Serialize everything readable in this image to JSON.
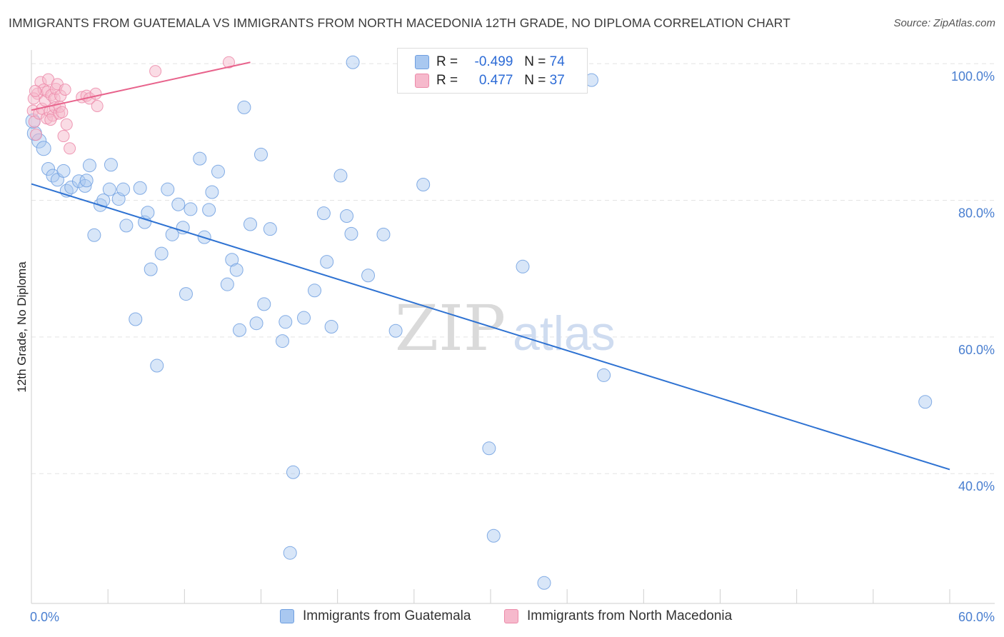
{
  "title": "IMMIGRANTS FROM GUATEMALA VS IMMIGRANTS FROM NORTH MACEDONIA 12TH GRADE, NO DIPLOMA CORRELATION CHART",
  "source": "Source: ZipAtlas.com",
  "watermark": {
    "zip": "ZIP",
    "atlas": "atlas"
  },
  "legend": {
    "rows": [
      {
        "r_label": "R =",
        "r_value": "-0.499",
        "n_label": "N =",
        "n_value": "74"
      },
      {
        "r_label": "R =",
        "r_value": "0.477",
        "n_label": "N =",
        "n_value": "37"
      }
    ]
  },
  "colors": {
    "blue_fill": "#a9c8f0",
    "blue_stroke": "#6f9fe0",
    "blue_line": "#2e72d2",
    "pink_fill": "#f6b9cc",
    "pink_stroke": "#ec8aa9",
    "pink_line": "#e8638c",
    "grid": "#e4e4e4",
    "axis_text": "#4a7fd0"
  },
  "chart_data": {
    "type": "scatter",
    "title": "IMMIGRANTS FROM GUATEMALA VS IMMIGRANTS FROM NORTH MACEDONIA 12TH GRADE, NO DIPLOMA CORRELATION CHART",
    "xlabel": "",
    "ylabel": "12th Grade, No Diploma",
    "xlim": [
      0,
      60
    ],
    "ylim": [
      21,
      102
    ],
    "x_tick_labels": [
      "0.0%",
      "60.0%"
    ],
    "y_ticks": [
      40,
      60,
      80,
      100
    ],
    "y_tick_labels": [
      "40.0%",
      "60.0%",
      "80.0%",
      "100.0%"
    ],
    "legend_position": "top-center",
    "series": [
      {
        "name": "Immigrants from Guatemala",
        "color": "#a9c8f0",
        "trend": {
          "x": [
            0,
            60
          ],
          "y": [
            82.4,
            40.6
          ]
        },
        "points": [
          [
            0.2,
            89.8
          ],
          [
            0.5,
            88.7
          ],
          [
            0.8,
            87.6
          ],
          [
            1.1,
            84.6
          ],
          [
            1.4,
            83.6
          ],
          [
            1.7,
            83.0
          ],
          [
            2.1,
            84.3
          ],
          [
            2.3,
            81.4
          ],
          [
            2.6,
            81.9
          ],
          [
            3.1,
            82.8
          ],
          [
            3.5,
            82.1
          ],
          [
            3.6,
            82.9
          ],
          [
            3.8,
            85.1
          ],
          [
            4.1,
            74.9
          ],
          [
            4.5,
            79.3
          ],
          [
            4.7,
            80.0
          ],
          [
            5.1,
            81.6
          ],
          [
            5.2,
            85.2
          ],
          [
            5.7,
            80.2
          ],
          [
            6.0,
            81.6
          ],
          [
            6.2,
            76.3
          ],
          [
            6.8,
            62.6
          ],
          [
            7.1,
            81.8
          ],
          [
            7.4,
            76.8
          ],
          [
            7.6,
            78.2
          ],
          [
            7.8,
            69.9
          ],
          [
            8.2,
            55.8
          ],
          [
            8.5,
            72.2
          ],
          [
            8.9,
            81.6
          ],
          [
            9.2,
            75.0
          ],
          [
            9.6,
            79.4
          ],
          [
            9.9,
            76.0
          ],
          [
            10.1,
            66.3
          ],
          [
            10.4,
            78.7
          ],
          [
            11.0,
            86.1
          ],
          [
            11.3,
            74.6
          ],
          [
            11.6,
            78.6
          ],
          [
            11.8,
            81.2
          ],
          [
            12.2,
            84.2
          ],
          [
            12.8,
            67.7
          ],
          [
            13.1,
            71.3
          ],
          [
            13.4,
            69.8
          ],
          [
            13.6,
            61.0
          ],
          [
            13.9,
            93.6
          ],
          [
            14.3,
            76.5
          ],
          [
            14.7,
            62.0
          ],
          [
            15.0,
            86.7
          ],
          [
            15.2,
            64.8
          ],
          [
            15.6,
            75.8
          ],
          [
            16.4,
            59.4
          ],
          [
            16.6,
            62.2
          ],
          [
            16.9,
            28.4
          ],
          [
            17.1,
            40.2
          ],
          [
            17.8,
            62.8
          ],
          [
            18.5,
            66.8
          ],
          [
            19.1,
            78.1
          ],
          [
            19.3,
            71.0
          ],
          [
            19.6,
            61.5
          ],
          [
            20.2,
            83.6
          ],
          [
            20.6,
            77.7
          ],
          [
            20.9,
            75.1
          ],
          [
            21.0,
            100.2
          ],
          [
            22.0,
            69.0
          ],
          [
            23.0,
            75.0
          ],
          [
            23.8,
            60.9
          ],
          [
            25.6,
            82.3
          ],
          [
            29.9,
            43.7
          ],
          [
            30.2,
            30.9
          ],
          [
            32.1,
            70.3
          ],
          [
            33.5,
            24.0
          ],
          [
            36.6,
            97.6
          ],
          [
            37.4,
            54.4
          ],
          [
            58.4,
            50.5
          ],
          [
            0.1,
            91.6
          ]
        ]
      },
      {
        "name": "Immigrants from North Macedonia",
        "color": "#f6b9cc",
        "trend": {
          "x": [
            0,
            14.3
          ],
          "y": [
            93.2,
            100.2
          ]
        },
        "points": [
          [
            0.1,
            93.1
          ],
          [
            0.2,
            91.5
          ],
          [
            0.3,
            89.6
          ],
          [
            0.4,
            95.6
          ],
          [
            0.5,
            92.7
          ],
          [
            0.6,
            97.3
          ],
          [
            0.7,
            93.4
          ],
          [
            0.8,
            96.2
          ],
          [
            0.9,
            94.6
          ],
          [
            1.0,
            92.0
          ],
          [
            1.05,
            95.9
          ],
          [
            1.1,
            97.7
          ],
          [
            1.2,
            93.0
          ],
          [
            1.3,
            95.4
          ],
          [
            1.4,
            92.4
          ],
          [
            1.5,
            94.9
          ],
          [
            1.55,
            93.6
          ],
          [
            1.6,
            96.3
          ],
          [
            1.7,
            97.0
          ],
          [
            1.8,
            92.7
          ],
          [
            1.85,
            93.7
          ],
          [
            1.9,
            95.3
          ],
          [
            2.0,
            92.9
          ],
          [
            2.1,
            89.4
          ],
          [
            2.2,
            96.2
          ],
          [
            2.3,
            91.1
          ],
          [
            2.5,
            87.6
          ],
          [
            3.3,
            95.1
          ],
          [
            3.6,
            95.3
          ],
          [
            3.8,
            94.9
          ],
          [
            4.2,
            95.6
          ],
          [
            4.3,
            93.8
          ],
          [
            8.1,
            98.9
          ],
          [
            12.9,
            100.2
          ],
          [
            0.15,
            94.9
          ],
          [
            0.25,
            96.0
          ],
          [
            1.25,
            91.8
          ]
        ]
      }
    ],
    "bottom_legend": [
      "Immigrants from Guatemala",
      "Immigrants from North Macedonia"
    ]
  }
}
